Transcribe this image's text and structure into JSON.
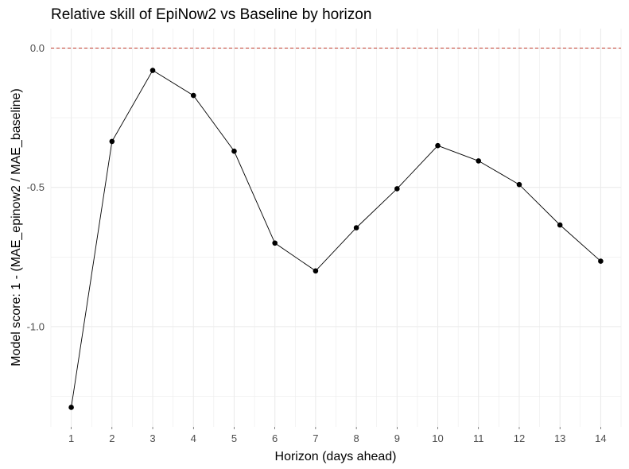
{
  "chart_data": {
    "type": "line",
    "title": "Relative skill of EpiNow2 vs Baseline by horizon",
    "xlabel": "Horizon (days ahead)",
    "ylabel": "Model score: 1 - (MAE_epinow2 / MAE_baseline)",
    "x": [
      1,
      2,
      3,
      4,
      5,
      6,
      7,
      8,
      9,
      10,
      11,
      12,
      13,
      14
    ],
    "x_tick_labels": [
      "1",
      "2",
      "3",
      "4",
      "5",
      "6",
      "7",
      "8",
      "9",
      "10",
      "11",
      "12",
      "13",
      "14"
    ],
    "y_ticks": [
      0.0,
      -0.5,
      -1.0
    ],
    "y_tick_labels": [
      "0.0",
      "-0.5",
      "-1.0"
    ],
    "xlim": [
      0.5,
      14.5
    ],
    "ylim": [
      -1.36,
      0.07
    ],
    "series": [
      {
        "values": [
          -1.29,
          -0.335,
          -0.08,
          -0.17,
          -0.37,
          -0.7,
          -0.8,
          -0.645,
          -0.505,
          -0.35,
          -0.405,
          -0.49,
          -0.635,
          -0.765
        ]
      }
    ],
    "reference_line": {
      "y": 0.0,
      "style": "dashed",
      "color": "#c0392b"
    },
    "grid": true,
    "colors": {
      "line": "#000000",
      "points": "#000000",
      "grid": "#ebebeb"
    }
  }
}
